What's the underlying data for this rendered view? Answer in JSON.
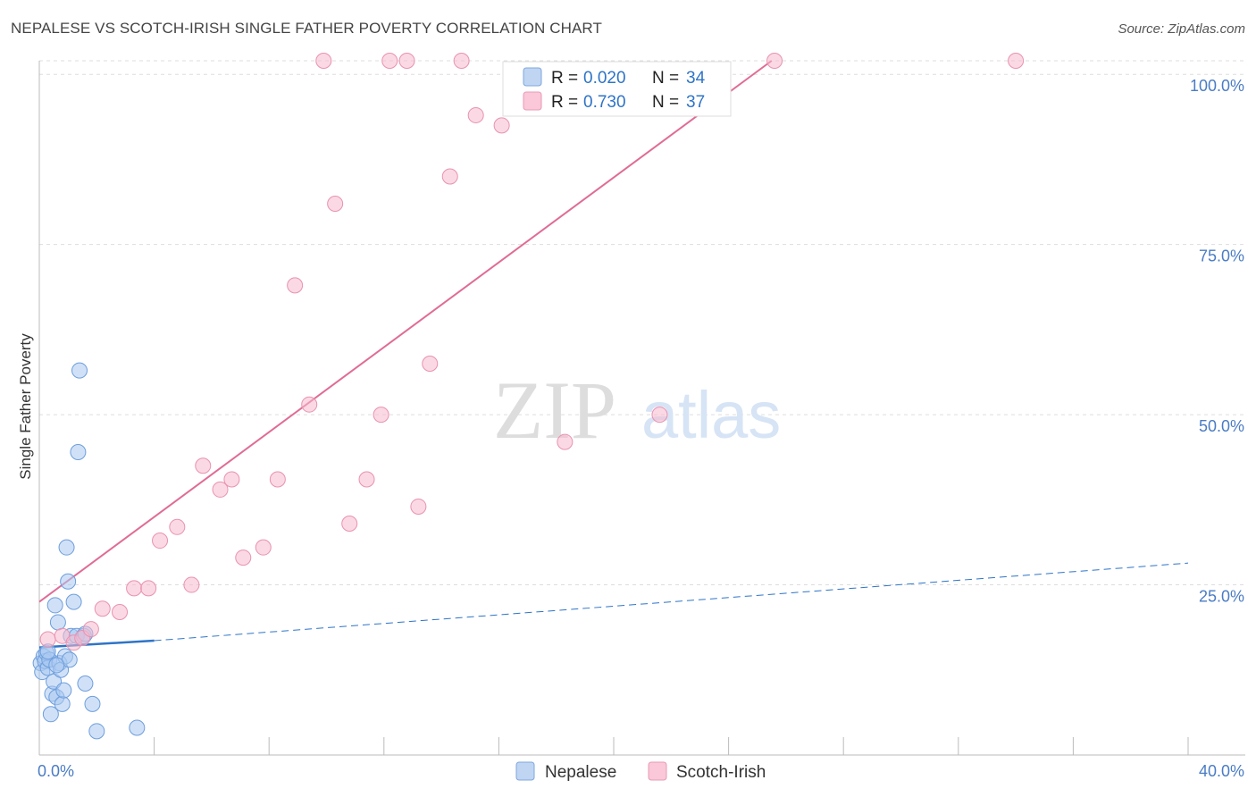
{
  "header": {
    "title": "NEPALESE VS SCOTCH-IRISH SINGLE FATHER POVERTY CORRELATION CHART",
    "source": "Source: ZipAtlas.com"
  },
  "watermark": {
    "zip": "ZIP",
    "atlas": "atlas"
  },
  "colors": {
    "blue": "#2E74C7",
    "blue_fill": "#A9C8F0",
    "pink": "#E06C96",
    "pink_fill": "#F7BACD",
    "tick_text": "#4A7CC4",
    "grid": "#DDDDDD"
  },
  "chart_data": {
    "type": "scatter",
    "title": "NEPALESE VS SCOTCH-IRISH SINGLE FATHER POVERTY CORRELATION CHART",
    "xlabel": "",
    "ylabel": "Single Father Poverty",
    "xlim": [
      0,
      40
    ],
    "ylim": [
      0,
      102
    ],
    "x_tick_labels": {
      "min": "0.0%",
      "max": "40.0%"
    },
    "y_ticks": [
      {
        "value": 25,
        "label": "25.0%"
      },
      {
        "value": 50,
        "label": "50.0%"
      },
      {
        "value": 75,
        "label": "75.0%"
      },
      {
        "value": 100,
        "label": "100.0%"
      }
    ],
    "legend": {
      "placement": "top-center",
      "entries": [
        {
          "r_label": "R =",
          "r_value": "0.020",
          "n_label": "N =",
          "n_value": "34"
        },
        {
          "r_label": "R =",
          "r_value": "0.730",
          "n_label": "N =",
          "n_value": "37"
        }
      ]
    },
    "bottom_legend": [
      "Nepalese",
      "Scotch-Irish"
    ],
    "series": [
      {
        "name": "Nepalese",
        "color": "#2E74C7",
        "points": [
          {
            "x": 0.05,
            "y": 13.5
          },
          {
            "x": 0.1,
            "y": 12.2
          },
          {
            "x": 0.15,
            "y": 14.5
          },
          {
            "x": 0.2,
            "y": 13.8
          },
          {
            "x": 0.25,
            "y": 15.0
          },
          {
            "x": 0.3,
            "y": 12.8
          },
          {
            "x": 0.35,
            "y": 14.0
          },
          {
            "x": 0.4,
            "y": 6.0
          },
          {
            "x": 0.45,
            "y": 9.0
          },
          {
            "x": 0.5,
            "y": 10.8
          },
          {
            "x": 0.55,
            "y": 22.0
          },
          {
            "x": 0.6,
            "y": 8.5
          },
          {
            "x": 0.65,
            "y": 19.5
          },
          {
            "x": 0.7,
            "y": 13.5
          },
          {
            "x": 0.75,
            "y": 12.5
          },
          {
            "x": 0.8,
            "y": 7.5
          },
          {
            "x": 0.85,
            "y": 9.5
          },
          {
            "x": 0.9,
            "y": 14.5
          },
          {
            "x": 0.95,
            "y": 30.5
          },
          {
            "x": 1.0,
            "y": 25.5
          },
          {
            "x": 1.05,
            "y": 14.0
          },
          {
            "x": 1.1,
            "y": 17.5
          },
          {
            "x": 1.2,
            "y": 22.5
          },
          {
            "x": 1.3,
            "y": 17.5
          },
          {
            "x": 1.35,
            "y": 44.5
          },
          {
            "x": 1.4,
            "y": 56.5
          },
          {
            "x": 1.55,
            "y": 17.5
          },
          {
            "x": 1.6,
            "y": 17.8
          },
          {
            "x": 1.6,
            "y": 10.5
          },
          {
            "x": 1.85,
            "y": 7.5
          },
          {
            "x": 2.0,
            "y": 3.5
          },
          {
            "x": 3.4,
            "y": 4.0
          },
          {
            "x": 0.3,
            "y": 15.2
          },
          {
            "x": 0.6,
            "y": 13.2
          }
        ],
        "trend": {
          "x0": 0,
          "y0": 15.8,
          "x1": 4.0,
          "y1": 16.8,
          "dash_to_x": 40,
          "dash_to_y": 28.2
        }
      },
      {
        "name": "Scotch-Irish",
        "color": "#E06C96",
        "points": [
          {
            "x": 0.3,
            "y": 17.0
          },
          {
            "x": 0.8,
            "y": 17.5
          },
          {
            "x": 1.2,
            "y": 16.5
          },
          {
            "x": 1.5,
            "y": 17.2
          },
          {
            "x": 1.8,
            "y": 18.5
          },
          {
            "x": 2.2,
            "y": 21.5
          },
          {
            "x": 2.8,
            "y": 21.0
          },
          {
            "x": 3.3,
            "y": 24.5
          },
          {
            "x": 3.8,
            "y": 24.5
          },
          {
            "x": 4.2,
            "y": 31.5
          },
          {
            "x": 4.8,
            "y": 33.5
          },
          {
            "x": 5.3,
            "y": 25.0
          },
          {
            "x": 5.7,
            "y": 42.5
          },
          {
            "x": 6.3,
            "y": 39.0
          },
          {
            "x": 6.7,
            "y": 40.5
          },
          {
            "x": 7.1,
            "y": 29.0
          },
          {
            "x": 7.8,
            "y": 30.5
          },
          {
            "x": 8.3,
            "y": 40.5
          },
          {
            "x": 8.9,
            "y": 69.0
          },
          {
            "x": 9.4,
            "y": 51.5
          },
          {
            "x": 9.9,
            "y": 102.0
          },
          {
            "x": 10.3,
            "y": 81.0
          },
          {
            "x": 10.8,
            "y": 34.0
          },
          {
            "x": 11.4,
            "y": 40.5
          },
          {
            "x": 11.9,
            "y": 50.0
          },
          {
            "x": 12.2,
            "y": 102.0
          },
          {
            "x": 12.8,
            "y": 102.0
          },
          {
            "x": 13.2,
            "y": 36.5
          },
          {
            "x": 13.6,
            "y": 57.5
          },
          {
            "x": 14.3,
            "y": 85.0
          },
          {
            "x": 14.7,
            "y": 102.0
          },
          {
            "x": 15.2,
            "y": 94.0
          },
          {
            "x": 16.1,
            "y": 92.5
          },
          {
            "x": 18.3,
            "y": 46.0
          },
          {
            "x": 21.6,
            "y": 50.0
          },
          {
            "x": 25.6,
            "y": 102.0
          },
          {
            "x": 34.0,
            "y": 102.0
          }
        ],
        "trend": {
          "x0": 0,
          "y0": 22.5,
          "x1": 25.5,
          "y1": 102.0
        }
      }
    ]
  }
}
